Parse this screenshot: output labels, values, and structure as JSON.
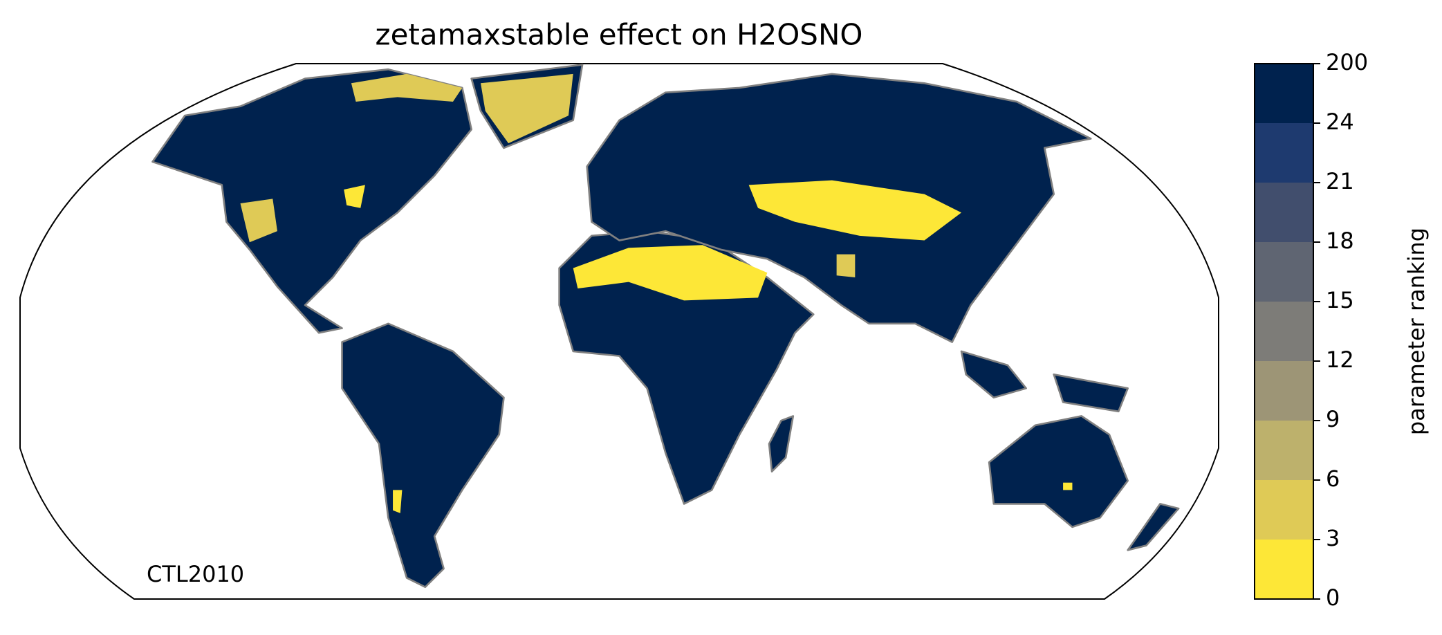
{
  "title": "zetamaxstable effect on H2OSNO",
  "annotation": "CTL2010",
  "colorbar": {
    "label": "parameter ranking",
    "ticks": [
      0,
      3,
      6,
      9,
      12,
      15,
      18,
      21,
      24,
      200
    ],
    "colors": [
      "#fde737",
      "#dfca56",
      "#bdb16c",
      "#9d9576",
      "#7d7c78",
      "#5f6572",
      "#414e6d",
      "#1e3a6f",
      "#00224e"
    ]
  }
}
